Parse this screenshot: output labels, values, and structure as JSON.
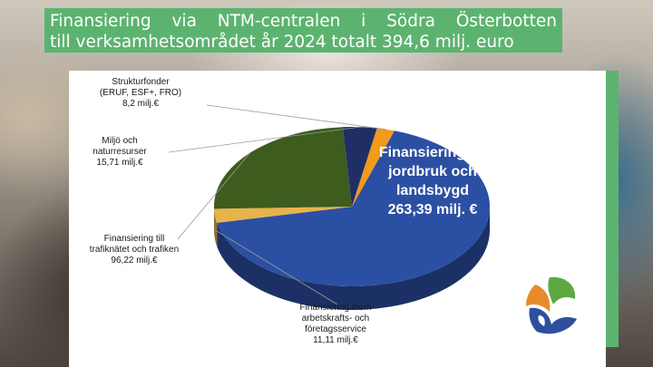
{
  "title": {
    "line1_words": [
      "Finansiering",
      "via",
      "NTM-centralen",
      "i",
      "Södra",
      "Österbotten"
    ],
    "line2": "till verksamhetsområdet år 2024 totalt 394,6 milj. euro"
  },
  "colors": {
    "title_bg": "#5cb370",
    "accent_strip": "#5cb370"
  },
  "logo": {
    "icon": "ntm-centre-logo"
  },
  "chart_data": {
    "type": "pie",
    "title": "Finansiering via NTM-centralen i Södra Österbotten till verksamhetsområdet år 2024 totalt 394,6 milj. euro",
    "unit": "milj.€",
    "slices": [
      {
        "name": "Finansiering till jordbruk och landsbygd",
        "value": 263.39,
        "label_lines": [
          "Finansiering till",
          "jordbruk och",
          "landsbygd",
          "263,39 milj. €"
        ],
        "color": "#2b4fa3"
      },
      {
        "name": "Finansiering inom arbetskrafts- och företagsservice",
        "value": 11.11,
        "label_lines": [
          "Finansiering inom",
          "arbetskrafts- och",
          "företagsservice",
          "11,11 milj.€"
        ],
        "color": "#e7b44a"
      },
      {
        "name": "Finansiering till trafiknätet och trafiken",
        "value": 96.22,
        "label_lines": [
          "Finansiering till",
          "trafiknätet och trafiken",
          "96,22 milj.€"
        ],
        "color": "#3d5c1e"
      },
      {
        "name": "Miljö och naturresurser",
        "value": 15.71,
        "label_lines": [
          "Miljö och",
          "naturresurser",
          "15,71 milj.€"
        ],
        "color": "#1f2f66"
      },
      {
        "name": "Strukturfonder (ERUF, ESF+, FRO)",
        "value": 8.2,
        "label_lines": [
          "Strukturfonder",
          "(ERUF, ESF+, FRO)",
          "8,2 milj.€"
        ],
        "color": "#f29a1a"
      }
    ]
  }
}
